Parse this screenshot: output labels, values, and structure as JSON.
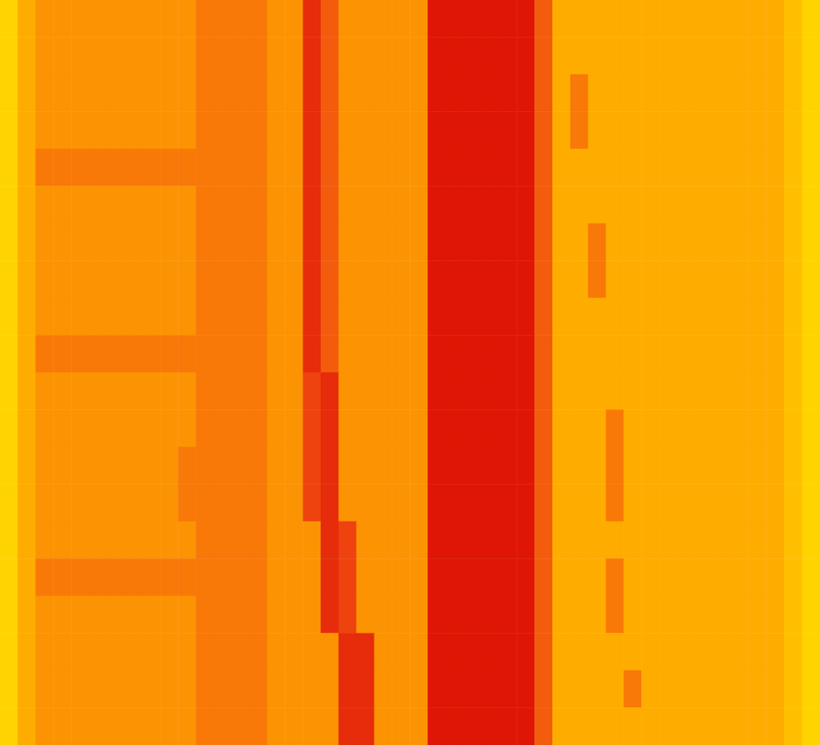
{
  "chart_data": {
    "type": "heatmap",
    "tick_labels": false,
    "grid": false,
    "color_range": [
      0,
      10
    ],
    "colors": [
      "#ffe600",
      "#ffa500",
      "#f04a10",
      "#d80000"
    ],
    "cells": [
      [
        1,
        3,
        4,
        4,
        4,
        4,
        4,
        4,
        4,
        4,
        4,
        5,
        5,
        5,
        5,
        4,
        4,
        8,
        6,
        4,
        4,
        4,
        4,
        4,
        9,
        9,
        9,
        9,
        9,
        9,
        6,
        3,
        3,
        3,
        3,
        3,
        3,
        3,
        3,
        3,
        3,
        3,
        3,
        3,
        2,
        1
      ],
      [
        1,
        3,
        4,
        4,
        4,
        4,
        4,
        4,
        4,
        4,
        4,
        5,
        5,
        5,
        5,
        4,
        4,
        8,
        6,
        4,
        4,
        4,
        4,
        4,
        9,
        9,
        9,
        9,
        9,
        9,
        6,
        3,
        3,
        3,
        3,
        3,
        3,
        3,
        3,
        3,
        3,
        3,
        3,
        3,
        2,
        1
      ],
      [
        1,
        3,
        4,
        4,
        4,
        4,
        4,
        4,
        4,
        4,
        4,
        5,
        5,
        5,
        5,
        4,
        4,
        8,
        6,
        4,
        4,
        4,
        4,
        4,
        9,
        9,
        9,
        9,
        9,
        9,
        6,
        3,
        5,
        3,
        3,
        3,
        3,
        3,
        3,
        3,
        3,
        3,
        3,
        3,
        2,
        1
      ],
      [
        1,
        3,
        4,
        4,
        4,
        4,
        4,
        4,
        4,
        4,
        4,
        5,
        5,
        5,
        5,
        4,
        4,
        8,
        6,
        4,
        4,
        4,
        4,
        4,
        9,
        9,
        9,
        9,
        9,
        9,
        6,
        3,
        5,
        3,
        3,
        3,
        3,
        3,
        3,
        3,
        3,
        3,
        3,
        3,
        2,
        1
      ],
      [
        1,
        3,
        5,
        5,
        5,
        5,
        5,
        5,
        5,
        5,
        5,
        5,
        5,
        5,
        5,
        4,
        4,
        8,
        6,
        4,
        4,
        4,
        4,
        4,
        9,
        9,
        9,
        9,
        9,
        9,
        6,
        3,
        3,
        3,
        3,
        3,
        3,
        3,
        3,
        3,
        3,
        3,
        3,
        3,
        2,
        1
      ],
      [
        1,
        3,
        4,
        4,
        4,
        4,
        4,
        4,
        4,
        4,
        4,
        5,
        5,
        5,
        5,
        4,
        4,
        8,
        6,
        4,
        4,
        4,
        4,
        4,
        9,
        9,
        9,
        9,
        9,
        9,
        6,
        3,
        3,
        3,
        3,
        3,
        3,
        3,
        3,
        3,
        3,
        3,
        3,
        3,
        2,
        1
      ],
      [
        1,
        3,
        4,
        4,
        4,
        4,
        4,
        4,
        4,
        4,
        4,
        5,
        5,
        5,
        5,
        4,
        4,
        8,
        6,
        4,
        4,
        4,
        4,
        4,
        9,
        9,
        9,
        9,
        9,
        9,
        6,
        3,
        3,
        5,
        3,
        3,
        3,
        3,
        3,
        3,
        3,
        3,
        3,
        3,
        2,
        1
      ],
      [
        1,
        3,
        4,
        4,
        4,
        4,
        4,
        4,
        4,
        4,
        4,
        5,
        5,
        5,
        5,
        4,
        4,
        8,
        6,
        4,
        4,
        4,
        4,
        4,
        9,
        9,
        9,
        9,
        9,
        9,
        6,
        3,
        3,
        5,
        3,
        3,
        3,
        3,
        3,
        3,
        3,
        3,
        3,
        3,
        2,
        1
      ],
      [
        1,
        3,
        4,
        4,
        4,
        4,
        4,
        4,
        4,
        4,
        4,
        5,
        5,
        5,
        5,
        4,
        4,
        8,
        6,
        4,
        4,
        4,
        4,
        4,
        9,
        9,
        9,
        9,
        9,
        9,
        6,
        3,
        3,
        3,
        3,
        3,
        3,
        3,
        3,
        3,
        3,
        3,
        3,
        3,
        2,
        1
      ],
      [
        1,
        3,
        5,
        5,
        5,
        5,
        5,
        5,
        5,
        5,
        5,
        5,
        5,
        5,
        5,
        4,
        4,
        8,
        6,
        4,
        4,
        4,
        4,
        4,
        9,
        9,
        9,
        9,
        9,
        9,
        6,
        3,
        3,
        3,
        3,
        3,
        3,
        3,
        3,
        3,
        3,
        3,
        3,
        3,
        2,
        1
      ],
      [
        1,
        3,
        4,
        4,
        4,
        4,
        4,
        4,
        4,
        4,
        4,
        5,
        5,
        5,
        5,
        4,
        4,
        7,
        8,
        4,
        4,
        4,
        4,
        4,
        9,
        9,
        9,
        9,
        9,
        9,
        6,
        3,
        3,
        3,
        3,
        3,
        3,
        3,
        3,
        3,
        3,
        3,
        3,
        3,
        2,
        1
      ],
      [
        1,
        3,
        4,
        4,
        4,
        4,
        4,
        4,
        4,
        4,
        4,
        5,
        5,
        5,
        5,
        4,
        4,
        7,
        8,
        4,
        4,
        4,
        4,
        4,
        9,
        9,
        9,
        9,
        9,
        9,
        6,
        3,
        3,
        3,
        5,
        3,
        3,
        3,
        3,
        3,
        3,
        3,
        3,
        3,
        2,
        1
      ],
      [
        1,
        3,
        4,
        4,
        4,
        4,
        4,
        4,
        4,
        4,
        5,
        5,
        5,
        5,
        5,
        4,
        4,
        7,
        8,
        4,
        4,
        4,
        4,
        4,
        9,
        9,
        9,
        9,
        9,
        9,
        6,
        3,
        3,
        3,
        5,
        3,
        3,
        3,
        3,
        3,
        3,
        3,
        3,
        3,
        2,
        1
      ],
      [
        1,
        3,
        4,
        4,
        4,
        4,
        4,
        4,
        4,
        4,
        5,
        5,
        5,
        5,
        5,
        4,
        4,
        7,
        8,
        4,
        4,
        4,
        4,
        4,
        9,
        9,
        9,
        9,
        9,
        9,
        6,
        3,
        3,
        3,
        5,
        3,
        3,
        3,
        3,
        3,
        3,
        3,
        3,
        3,
        2,
        1
      ],
      [
        1,
        3,
        4,
        4,
        4,
        4,
        4,
        4,
        4,
        4,
        4,
        5,
        5,
        5,
        5,
        4,
        4,
        4,
        8,
        7,
        4,
        4,
        4,
        4,
        9,
        9,
        9,
        9,
        9,
        9,
        6,
        3,
        3,
        3,
        3,
        3,
        3,
        3,
        3,
        3,
        3,
        3,
        3,
        3,
        2,
        1
      ],
      [
        1,
        3,
        5,
        5,
        5,
        5,
        5,
        5,
        5,
        5,
        5,
        5,
        5,
        5,
        5,
        4,
        4,
        4,
        8,
        7,
        4,
        4,
        4,
        4,
        9,
        9,
        9,
        9,
        9,
        9,
        6,
        3,
        3,
        3,
        5,
        3,
        3,
        3,
        3,
        3,
        3,
        3,
        3,
        3,
        2,
        1
      ],
      [
        1,
        3,
        4,
        4,
        4,
        4,
        4,
        4,
        4,
        4,
        4,
        5,
        5,
        5,
        5,
        4,
        4,
        4,
        8,
        7,
        4,
        4,
        4,
        4,
        9,
        9,
        9,
        9,
        9,
        9,
        6,
        3,
        3,
        3,
        5,
        3,
        3,
        3,
        3,
        3,
        3,
        3,
        3,
        3,
        2,
        1
      ],
      [
        1,
        3,
        4,
        4,
        4,
        4,
        4,
        4,
        4,
        4,
        4,
        5,
        5,
        5,
        5,
        4,
        4,
        4,
        4,
        8,
        8,
        4,
        4,
        4,
        9,
        9,
        9,
        9,
        9,
        9,
        6,
        3,
        3,
        3,
        3,
        3,
        3,
        3,
        3,
        3,
        3,
        3,
        3,
        3,
        2,
        1
      ],
      [
        1,
        3,
        4,
        4,
        4,
        4,
        4,
        4,
        4,
        4,
        4,
        5,
        5,
        5,
        5,
        4,
        4,
        4,
        4,
        8,
        8,
        4,
        4,
        4,
        9,
        9,
        9,
        9,
        9,
        9,
        6,
        3,
        3,
        3,
        3,
        5,
        3,
        3,
        3,
        3,
        3,
        3,
        3,
        3,
        2,
        1
      ],
      [
        1,
        3,
        4,
        4,
        4,
        4,
        4,
        4,
        4,
        4,
        4,
        5,
        5,
        5,
        5,
        4,
        4,
        4,
        4,
        8,
        8,
        4,
        4,
        4,
        9,
        9,
        9,
        9,
        9,
        9,
        6,
        3,
        3,
        3,
        3,
        3,
        3,
        3,
        3,
        3,
        3,
        3,
        3,
        3,
        2,
        1
      ]
    ]
  }
}
